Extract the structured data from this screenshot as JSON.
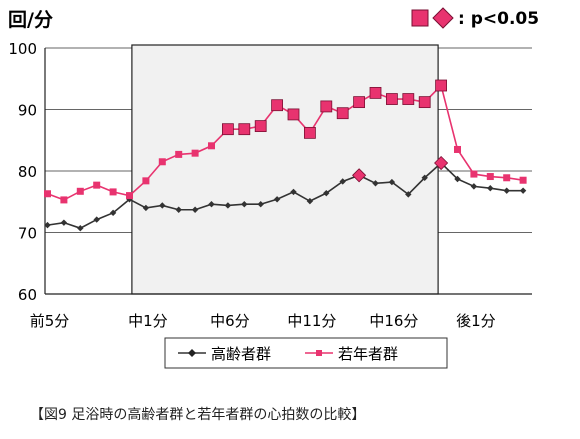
{
  "chart_data": {
    "type": "line",
    "ylabel": "回/分",
    "ylim": [
      60,
      100
    ],
    "yticks": [
      60,
      70,
      80,
      90,
      100
    ],
    "grid": "horizontal",
    "x_tick_labels": [
      {
        "i": 0,
        "label": "前5分"
      },
      {
        "i": 6,
        "label": "中1分"
      },
      {
        "i": 11,
        "label": "中6分"
      },
      {
        "i": 16,
        "label": "中11分"
      },
      {
        "i": 21,
        "label": "中16分"
      },
      {
        "i": 26,
        "label": "後1分"
      }
    ],
    "shaded_range": [
      6,
      24
    ],
    "significance_legend": {
      "text": ": p<0.05"
    },
    "legend_position": "bottom-center",
    "series": [
      {
        "name": "高齢者群",
        "color": "#333333",
        "marker": "diamond",
        "values": [
          71.2,
          71.6,
          70.7,
          72.1,
          73.2,
          75.4,
          74.0,
          74.4,
          73.7,
          73.7,
          74.6,
          74.4,
          74.6,
          74.6,
          75.4,
          76.6,
          75.1,
          76.4,
          78.3,
          79.3,
          78.0,
          78.2,
          76.2,
          78.9,
          81.3,
          78.7,
          77.5,
          77.2,
          76.8,
          76.8
        ],
        "significant_indices": [
          19,
          24
        ]
      },
      {
        "name": "若年者群",
        "color": "#e8336f",
        "marker": "square",
        "values": [
          76.3,
          75.3,
          76.7,
          77.7,
          76.6,
          76.0,
          78.4,
          81.5,
          82.7,
          82.9,
          84.1,
          86.8,
          86.8,
          87.3,
          90.7,
          89.2,
          86.2,
          90.5,
          89.4,
          91.2,
          92.7,
          91.7,
          91.7,
          91.2,
          93.9,
          83.5,
          79.5,
          79.1,
          78.9,
          78.5
        ],
        "significant_indices": [
          11,
          12,
          13,
          14,
          15,
          16,
          17,
          18,
          19,
          20,
          21,
          22,
          23,
          24
        ]
      }
    ]
  },
  "caption": "【図9  足浴時の高齢者群と若年者群の心拍数の比較】"
}
